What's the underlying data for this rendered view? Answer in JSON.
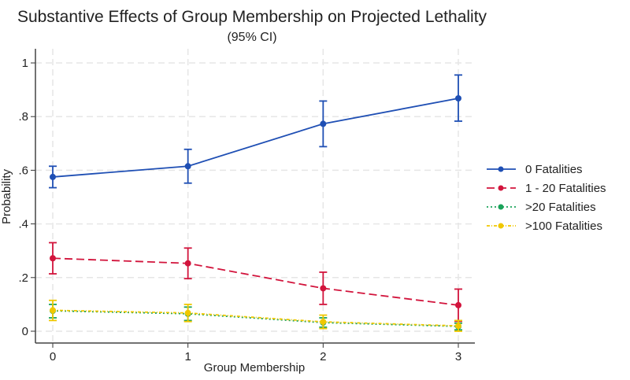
{
  "chart_data": {
    "type": "line",
    "title": "Substantive Effects of Group Membership on Projected Lethality",
    "subtitle": "(95% CI)",
    "xlabel": "Group Membership",
    "ylabel": "Probability",
    "x": [
      0,
      1,
      2,
      3
    ],
    "xlim": [
      0,
      3
    ],
    "ylim": [
      0,
      1
    ],
    "xticks": [
      "0",
      "1",
      "2",
      "3"
    ],
    "yticks": [
      {
        "v": 0,
        "label": "0"
      },
      {
        "v": 0.2,
        "label": ".2"
      },
      {
        "v": 0.4,
        "label": ".4"
      },
      {
        "v": 0.6,
        "label": ".6"
      },
      {
        "v": 0.8,
        "label": ".8"
      },
      {
        "v": 1,
        "label": "1"
      }
    ],
    "grid": true,
    "legend_position": "right",
    "series": [
      {
        "name": "0 Fatalities",
        "color": "#1f4fb4",
        "dash": "solid",
        "values": [
          0.575,
          0.615,
          0.773,
          0.868
        ],
        "lower": [
          0.535,
          0.552,
          0.688,
          0.783
        ],
        "upper": [
          0.615,
          0.678,
          0.858,
          0.955
        ]
      },
      {
        "name": "1 - 20 Fatalities",
        "color": "#d2143c",
        "dash": "dashed",
        "values": [
          0.272,
          0.253,
          0.16,
          0.097
        ],
        "lower": [
          0.214,
          0.196,
          0.1,
          0.037
        ],
        "upper": [
          0.33,
          0.31,
          0.22,
          0.157
        ]
      },
      {
        "name": ">20 Fatalities",
        "color": "#1aa35a",
        "dash": "dotted",
        "values": [
          0.076,
          0.065,
          0.032,
          0.018
        ],
        "lower": [
          0.05,
          0.04,
          0.015,
          0.005
        ],
        "upper": [
          0.1,
          0.09,
          0.05,
          0.03
        ]
      },
      {
        "name": ">100 Fatalities",
        "color": "#f0c800",
        "dash": "dashdot",
        "values": [
          0.078,
          0.068,
          0.035,
          0.02
        ],
        "lower": [
          0.04,
          0.036,
          0.01,
          0.0
        ],
        "upper": [
          0.115,
          0.1,
          0.06,
          0.04
        ]
      }
    ]
  }
}
